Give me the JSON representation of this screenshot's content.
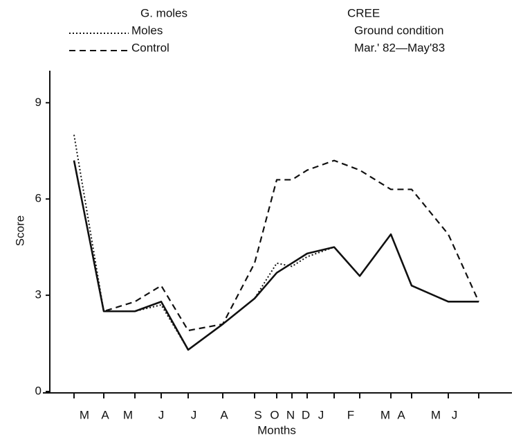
{
  "chart_data": {
    "type": "line",
    "annotations": [
      "CREE",
      "Ground condition",
      "Mar.' 82—May'83"
    ],
    "xlabel": "Months",
    "ylabel": "Score",
    "categories": [
      "M",
      "A",
      "M",
      "J",
      "J",
      "A",
      "S",
      "O",
      "N",
      "D",
      "J",
      "F",
      "M",
      "A",
      "M",
      "J"
    ],
    "series": [
      {
        "name": "G. moles",
        "color": "#111111",
        "dash": "solid",
        "values": [
          7.2,
          2.5,
          2.5,
          2.8,
          1.3,
          2.1,
          2.9,
          3.7,
          4.0,
          4.3,
          4.5,
          3.6,
          4.9,
          3.3,
          2.8,
          2.8
        ]
      },
      {
        "name": "Moles",
        "color": "#111111",
        "dash": "dotted",
        "values": [
          8.0,
          2.5,
          2.5,
          2.7,
          1.3,
          2.1,
          2.9,
          4.0,
          3.9,
          4.2,
          4.5,
          3.6,
          4.9,
          3.3,
          2.8,
          2.8
        ]
      },
      {
        "name": "Control",
        "color": "#111111",
        "dash": "dashed",
        "values": [
          7.2,
          2.5,
          2.8,
          3.3,
          1.9,
          2.1,
          4.0,
          6.6,
          6.6,
          6.9,
          7.2,
          6.9,
          6.3,
          6.3,
          4.9,
          2.8
        ]
      }
    ],
    "ylim": [
      0,
      10
    ],
    "yticks": [
      0,
      3,
      6,
      9
    ]
  }
}
